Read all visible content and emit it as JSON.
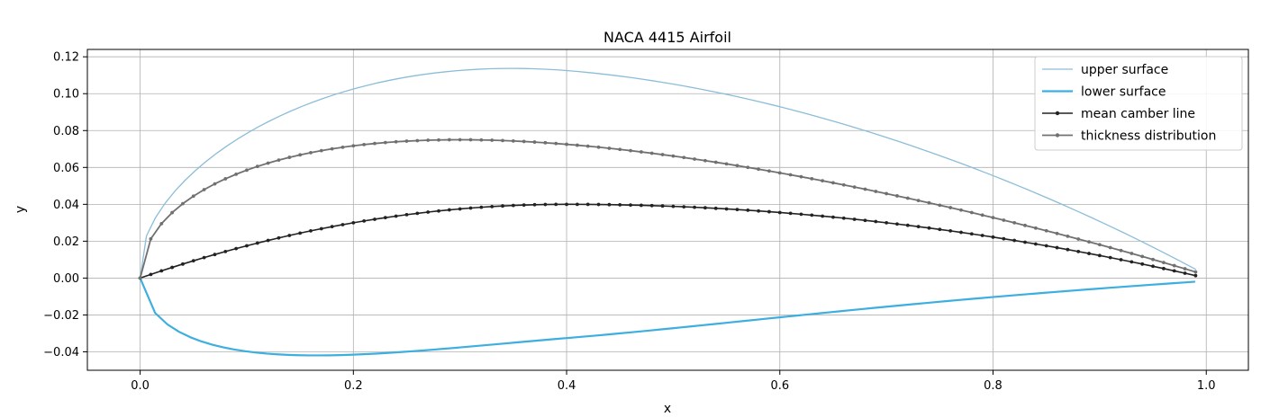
{
  "chart_data": {
    "type": "line",
    "title": "NACA 4415 Airfoil",
    "xlabel": "x",
    "ylabel": "y",
    "xlim": [
      -0.0495,
      1.0395
    ],
    "ylim": [
      -0.05,
      0.124
    ],
    "xticks": [
      0.0,
      0.2,
      0.4,
      0.6,
      0.8,
      1.0
    ],
    "xtick_labels": [
      "0.0",
      "0.2",
      "0.4",
      "0.6",
      "0.8",
      "1.0"
    ],
    "yticks": [
      -0.04,
      -0.02,
      0.0,
      0.02,
      0.04,
      0.06,
      0.08,
      0.1,
      0.12
    ],
    "ytick_labels": [
      "−0.04",
      "−0.02",
      "0.00",
      "0.02",
      "0.04",
      "0.06",
      "0.08",
      "0.10",
      "0.12"
    ],
    "grid": true,
    "legend_position": "top-right",
    "airfoil": {
      "m": 0.04,
      "p": 0.4,
      "t": 0.15,
      "x_start": 0.0,
      "x_end": 0.99,
      "n_points": 100
    },
    "series": [
      {
        "name": "upper surface",
        "color": "#8bbdd9",
        "line_width": 1.3,
        "markers": false
      },
      {
        "name": "lower surface",
        "color": "#3daee0",
        "line_width": 2.2,
        "markers": false
      },
      {
        "name": "mean camber line",
        "color": "#222222",
        "line_width": 1.6,
        "markers": true
      },
      {
        "name": "thickness distribution",
        "color": "#707070",
        "line_width": 1.8,
        "markers": true
      }
    ]
  }
}
